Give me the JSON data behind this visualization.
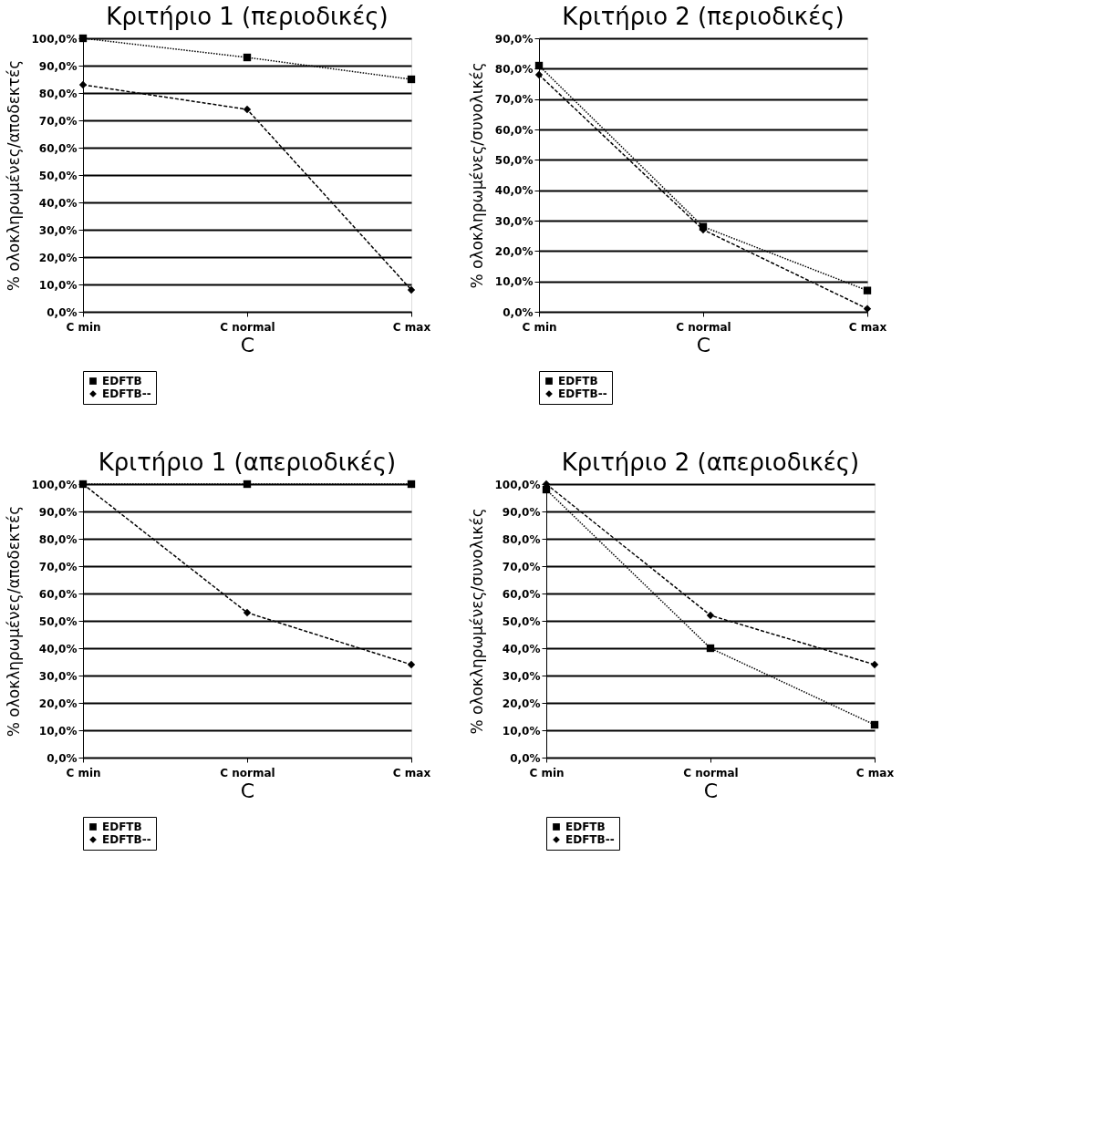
{
  "chart_data": [
    {
      "type": "line",
      "title": "Κριτήριο 1 (περιοδικές)",
      "xlabel": "C",
      "ylabel": "% ολοκληρωμένες/αποδεκτές",
      "categories": [
        "C min",
        "C normal",
        "C max"
      ],
      "ylim": [
        0,
        100
      ],
      "yticks": [
        {
          "value": 0,
          "label": "0,0%"
        },
        {
          "value": 10,
          "label": "10,0%"
        },
        {
          "value": 20,
          "label": "20,0%"
        },
        {
          "value": 30,
          "label": "30,0%"
        },
        {
          "value": 40,
          "label": "40,0%"
        },
        {
          "value": 50,
          "label": "50,0%"
        },
        {
          "value": 60,
          "label": "60,0%"
        },
        {
          "value": 70,
          "label": "70,0%"
        },
        {
          "value": 80,
          "label": "80,0%"
        },
        {
          "value": 90,
          "label": "90,0%"
        },
        {
          "value": 100,
          "label": "100,0%"
        }
      ],
      "grid": "y",
      "legend": "bottom",
      "line_style": "dashed",
      "series": [
        {
          "name": "EDFTB",
          "color": "#000000",
          "marker": "square",
          "line_style": "dotted",
          "values": [
            100,
            93,
            85
          ]
        },
        {
          "name": "EDFTB--",
          "color": "#000000",
          "marker": "diamond",
          "values": [
            83,
            74,
            8
          ]
        }
      ]
    },
    {
      "type": "line",
      "title": "Κριτήριο 2 (περιοδικές)",
      "xlabel": "C",
      "ylabel": "% ολοκληρωμένες/συνολικές",
      "categories": [
        "C min",
        "C normal",
        "C max"
      ],
      "ylim": [
        0,
        90
      ],
      "yticks": [
        {
          "value": 0,
          "label": "0,0%"
        },
        {
          "value": 10,
          "label": "10,0%"
        },
        {
          "value": 20,
          "label": "20,0%"
        },
        {
          "value": 30,
          "label": "30,0%"
        },
        {
          "value": 40,
          "label": "40,0%"
        },
        {
          "value": 50,
          "label": "50,0%"
        },
        {
          "value": 60,
          "label": "60,0%"
        },
        {
          "value": 70,
          "label": "70,0%"
        },
        {
          "value": 80,
          "label": "80,0%"
        },
        {
          "value": 90,
          "label": "90,0%"
        }
      ],
      "grid": "y",
      "legend": "bottom",
      "line_style": "dashed",
      "series": [
        {
          "name": "EDFTB",
          "color": "#000000",
          "marker": "square",
          "line_style": "dotted",
          "values": [
            81,
            28,
            7
          ]
        },
        {
          "name": "EDFTB--",
          "color": "#000000",
          "marker": "diamond",
          "values": [
            78,
            27,
            1
          ]
        }
      ]
    },
    {
      "type": "line",
      "title": "Κριτήριο 1 (απεριοδικές)",
      "xlabel": "C",
      "ylabel": "% ολοκληρωμένες/αποδεκτές",
      "categories": [
        "C min",
        "C normal",
        "C max"
      ],
      "ylim": [
        0,
        100
      ],
      "yticks": [
        {
          "value": 0,
          "label": "0,0%"
        },
        {
          "value": 10,
          "label": "10,0%"
        },
        {
          "value": 20,
          "label": "20,0%"
        },
        {
          "value": 30,
          "label": "30,0%"
        },
        {
          "value": 40,
          "label": "40,0%"
        },
        {
          "value": 50,
          "label": "50,0%"
        },
        {
          "value": 60,
          "label": "60,0%"
        },
        {
          "value": 70,
          "label": "70,0%"
        },
        {
          "value": 80,
          "label": "80,0%"
        },
        {
          "value": 90,
          "label": "90,0%"
        },
        {
          "value": 100,
          "label": "100,0%"
        }
      ],
      "grid": "y",
      "legend": "bottom",
      "line_style": "dashed",
      "series": [
        {
          "name": "EDFTB",
          "color": "#000000",
          "marker": "square",
          "line_style": "dotted",
          "values": [
            100,
            100,
            100
          ]
        },
        {
          "name": "EDFTB--",
          "color": "#000000",
          "marker": "diamond",
          "values": [
            100,
            53,
            34
          ]
        }
      ]
    },
    {
      "type": "line",
      "title": "Κριτήριο 2 (απεριοδικές)",
      "xlabel": "C",
      "ylabel": "% ολοκληρωμένες/συνολικές",
      "categories": [
        "C min",
        "C normal",
        "C max"
      ],
      "ylim": [
        0,
        100
      ],
      "yticks": [
        {
          "value": 0,
          "label": "0,0%"
        },
        {
          "value": 10,
          "label": "10,0%"
        },
        {
          "value": 20,
          "label": "20,0%"
        },
        {
          "value": 30,
          "label": "30,0%"
        },
        {
          "value": 40,
          "label": "40,0%"
        },
        {
          "value": 50,
          "label": "50,0%"
        },
        {
          "value": 60,
          "label": "60,0%"
        },
        {
          "value": 70,
          "label": "70,0%"
        },
        {
          "value": 80,
          "label": "80,0%"
        },
        {
          "value": 90,
          "label": "90,0%"
        },
        {
          "value": 100,
          "label": "100,0%"
        }
      ],
      "grid": "y",
      "legend": "bottom",
      "line_style": "dashed",
      "series": [
        {
          "name": "EDFTB",
          "color": "#000000",
          "marker": "square",
          "line_style": "dotted",
          "values": [
            98,
            40,
            12
          ]
        },
        {
          "name": "EDFTB--",
          "color": "#000000",
          "marker": "diamond",
          "values": [
            100,
            52,
            34
          ]
        }
      ]
    }
  ]
}
